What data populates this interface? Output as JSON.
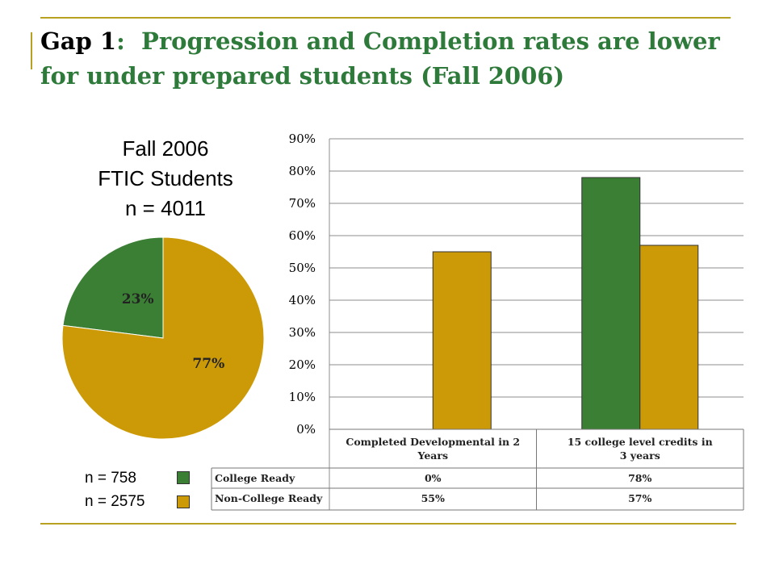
{
  "title": {
    "prefix": "Gap 1",
    "colon": ":",
    "text": "Progression and Completion rates are lower for under prepared students (Fall 2006)"
  },
  "pie": {
    "title_lines": [
      "Fall 2006",
      "FTIC Students",
      "n = 4011"
    ],
    "legend": [
      {
        "label": "n = 758",
        "color": "#3b7f35"
      },
      {
        "label": "n = 2575",
        "color": "#cc9a06"
      }
    ]
  },
  "chart_data": [
    {
      "type": "pie",
      "title": "Fall 2006 FTIC Students n = 4011",
      "slices": [
        {
          "label": "23%",
          "value": 23,
          "color": "#3b7f35"
        },
        {
          "label": "77%",
          "value": 77,
          "color": "#cc9a06"
        }
      ]
    },
    {
      "type": "bar",
      "categories": [
        "Completed Developmental in 2 Years",
        "15 college level credits in 3 years"
      ],
      "series": [
        {
          "name": "College Ready",
          "values": [
            0,
            78
          ],
          "labels": [
            "0%",
            "78%"
          ],
          "color": "#3b7f35"
        },
        {
          "name": "Non-College Ready",
          "values": [
            55,
            57
          ],
          "labels": [
            "55%",
            "57%"
          ],
          "color": "#cc9a06"
        }
      ],
      "ylim": [
        0,
        90
      ],
      "yticks": [
        "0%",
        "10%",
        "20%",
        "30%",
        "40%",
        "50%",
        "60%",
        "70%",
        "80%",
        "90%"
      ],
      "grid": true,
      "legend": "data table below chart"
    }
  ]
}
